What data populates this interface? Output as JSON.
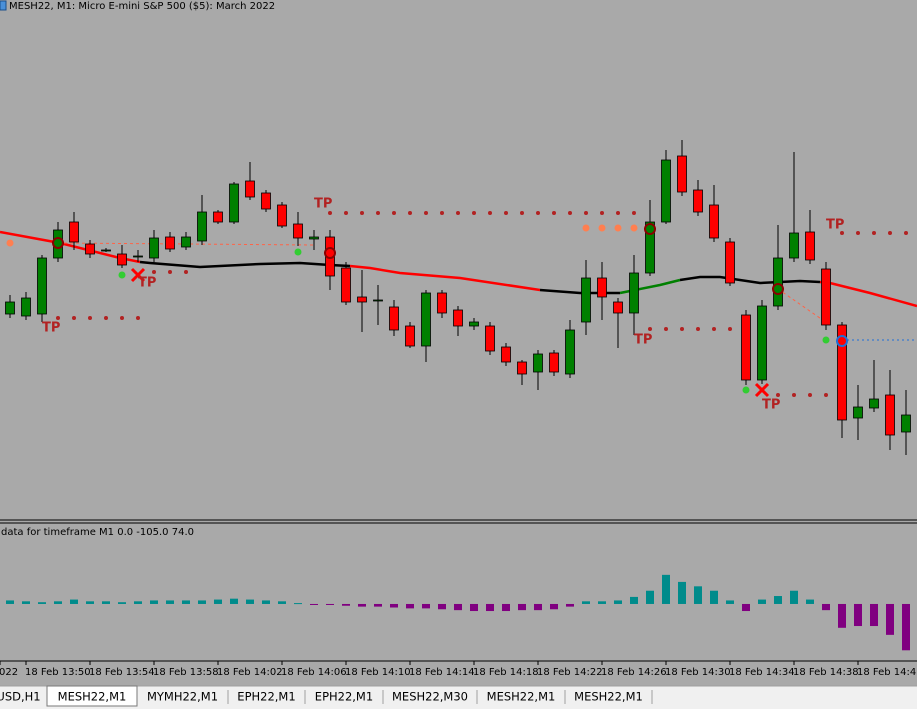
{
  "window": {
    "title": "MESH22, M1:  Micro E-mini S&P 500 ($5): March 2022",
    "indicator_label": "data for timeframe M1 0.0 -105.0 74.0",
    "tabs": [
      "USD,H1",
      "MESH22,M1",
      "MYMH22,M1",
      "EPH22,M1",
      "EPH22,M1",
      "MESH22,M30",
      "MESH22,M1",
      "MESH22,M1"
    ],
    "active_tab": 1
  },
  "chart_data": [
    {
      "type": "candlestick",
      "up_color": "#008000",
      "down_color": "#ff0000",
      "x_labels": [
        "022",
        "18 Feb 13:50",
        "18 Feb 13:54",
        "18 Feb 13:58",
        "18 Feb 14:02",
        "18 Feb 14:06",
        "18 Feb 14:10",
        "18 Feb 14:14",
        "18 Feb 14:18",
        "18 Feb 14:22",
        "18 Feb 14:26",
        "18 Feb 14:30",
        "18 Feb 14:34",
        "18 Feb 14:38",
        "18 Feb 14:42"
      ],
      "annotations": [
        "TP",
        "TP",
        "TP",
        "TP",
        "TP",
        "TP"
      ],
      "ylim": [
        0,
        508
      ],
      "open": [
        206,
        204,
        206,
        262,
        298,
        276,
        270,
        266,
        264,
        262,
        283,
        273,
        279,
        308,
        298,
        339,
        327,
        315,
        296,
        281,
        283,
        252,
        223,
        220,
        213,
        194,
        174,
        227,
        210,
        194,
        194,
        173,
        158,
        148,
        167,
        146,
        198,
        242,
        218,
        207,
        247,
        298,
        364,
        330,
        315,
        278,
        205,
        140,
        214,
        262,
        288,
        251,
        195,
        102,
        112,
        125,
        88
      ],
      "high": [
        225,
        228,
        265,
        298,
        308,
        280,
        272,
        275,
        270,
        290,
        288,
        288,
        325,
        310,
        338,
        358,
        330,
        318,
        308,
        290,
        290,
        258,
        250,
        235,
        220,
        198,
        230,
        230,
        214,
        202,
        198,
        177,
        160,
        170,
        170,
        200,
        260,
        258,
        222,
        265,
        320,
        370,
        380,
        340,
        335,
        282,
        210,
        220,
        295,
        368,
        310,
        258,
        198,
        135,
        160,
        150,
        130
      ],
      "low": [
        202,
        200,
        198,
        258,
        270,
        262,
        268,
        252,
        258,
        258,
        268,
        270,
        275,
        296,
        296,
        320,
        308,
        292,
        274,
        270,
        230,
        215,
        188,
        195,
        184,
        172,
        158,
        202,
        184,
        190,
        165,
        154,
        135,
        130,
        144,
        142,
        185,
        200,
        172,
        185,
        244,
        296,
        324,
        304,
        278,
        234,
        135,
        136,
        210,
        258,
        256,
        190,
        82,
        80,
        108,
        70,
        65
      ],
      "close": [
        218,
        222,
        262,
        290,
        278,
        266,
        270,
        255,
        264,
        282,
        271,
        283,
        308,
        298,
        336,
        323,
        311,
        294,
        282,
        283,
        244,
        218,
        218,
        220,
        190,
        174,
        227,
        207,
        194,
        198,
        169,
        158,
        146,
        166,
        148,
        190,
        242,
        223,
        207,
        247,
        298,
        360,
        328,
        308,
        282,
        237,
        140,
        214,
        262,
        287,
        260,
        195,
        100,
        113,
        121,
        85,
        105
      ]
    },
    {
      "type": "histogram",
      "up_color": "#008b8b",
      "down_color": "#800080",
      "ylim": [
        -127,
        145
      ],
      "values": [
        8,
        6,
        4,
        6,
        10,
        6,
        6,
        4,
        6,
        8,
        8,
        8,
        8,
        10,
        12,
        10,
        8,
        6,
        2,
        -2,
        -2,
        -4,
        -6,
        -6,
        -8,
        -10,
        -10,
        -12,
        -14,
        -16,
        -16,
        -16,
        -14,
        -14,
        -12,
        -6,
        6,
        6,
        8,
        16,
        30,
        66,
        50,
        40,
        30,
        8,
        -16,
        10,
        18,
        30,
        10,
        -14,
        -54,
        -50,
        -50,
        -70,
        -105
      ]
    }
  ]
}
